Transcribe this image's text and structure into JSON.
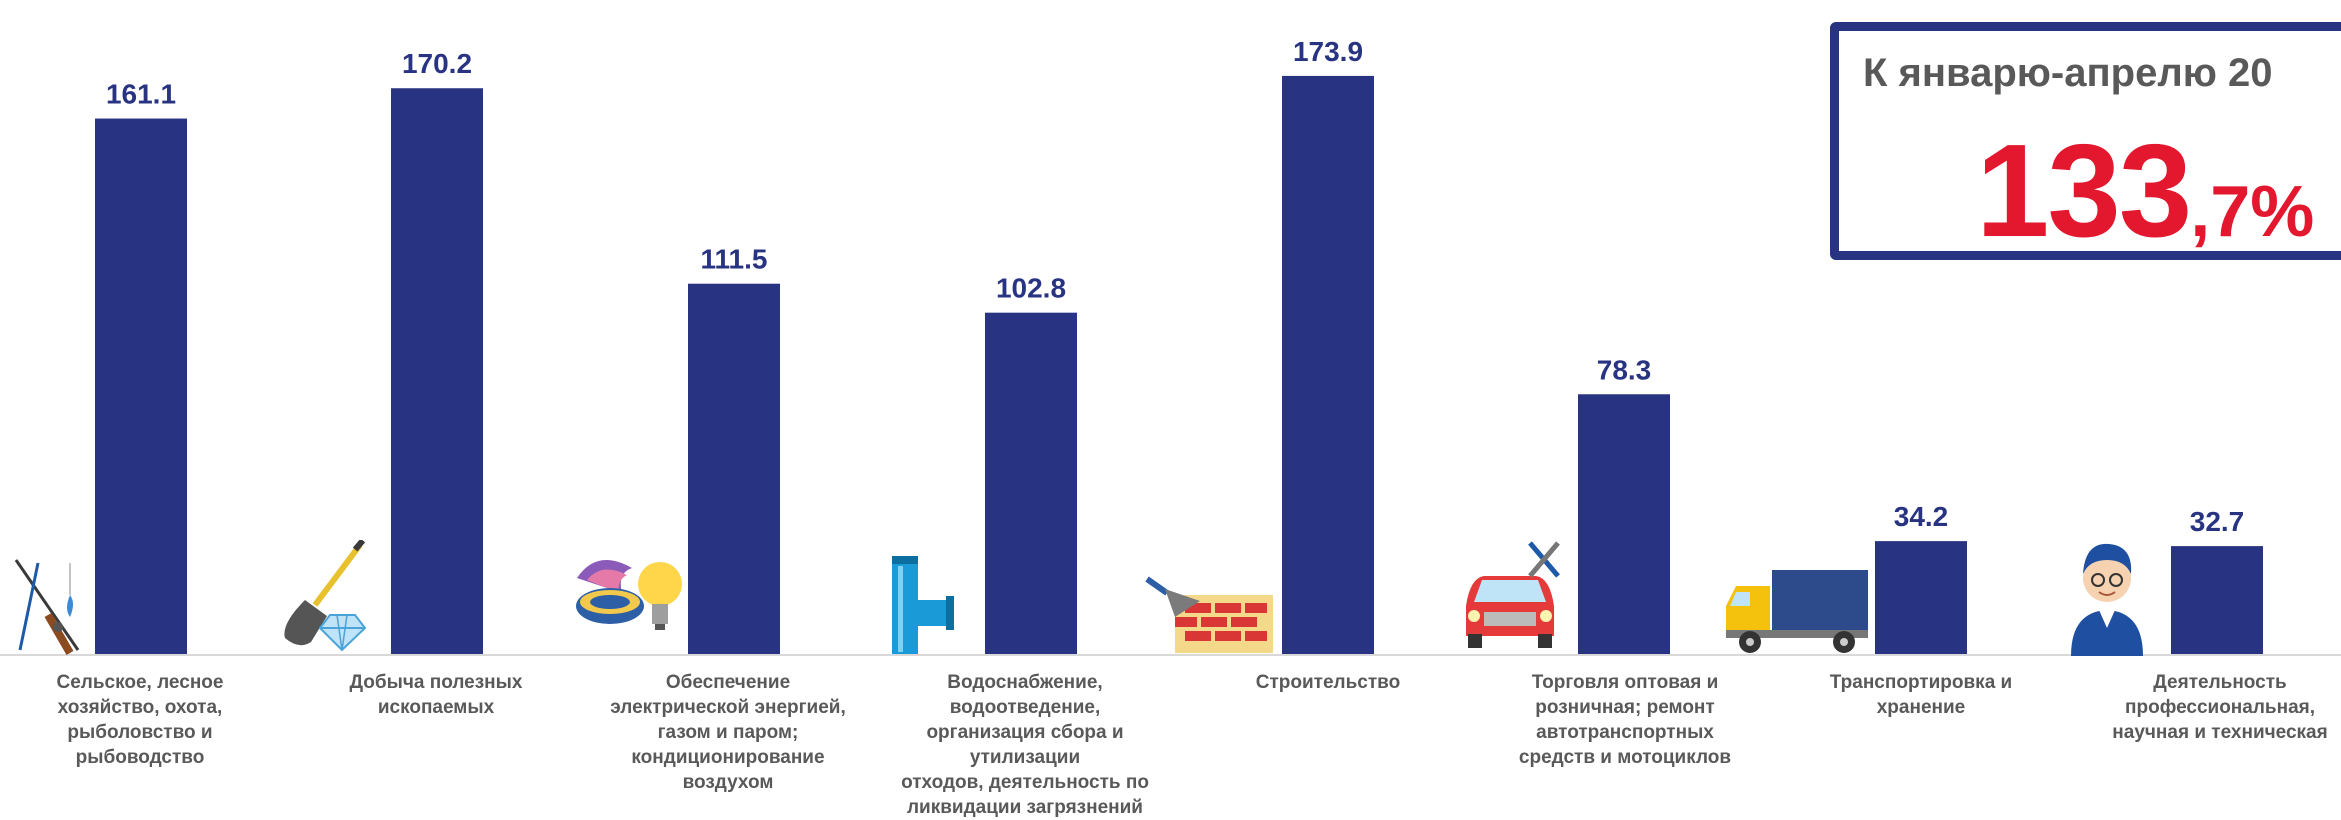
{
  "chart_data": {
    "type": "bar",
    "categories": [
      "Сельское, лесное\nхозяйство, охота,\nрыболовство и\nрыбоводство",
      "Добыча полезных\nископаемых",
      "Обеспечение\nэлектрической энергией,\nгазом и паром;\nкондиционирование\nвоздухом",
      "Водоснабжение,\nводоотведение,\nорганизация сбора и\nутилизации\nотходов, деятельность по\nликвидации загрязнений",
      "Строительство",
      "Торговля оптовая и\nрозничная; ремонт\nавтотранспортных\nсредств и мотоциклов",
      "Транспортировка и\nхранение",
      "Деятельность\nпрофессиональная,\nнаучная и техническая"
    ],
    "values": [
      161.1,
      170.2,
      111.5,
      102.8,
      173.9,
      78.3,
      34.2,
      32.7
    ],
    "value_labels": [
      "161.1",
      "170.2",
      "111.5",
      "102.8",
      "173.9",
      "78.3",
      "34.2",
      "32.7"
    ],
    "title": "",
    "xlabel": "",
    "ylabel": "",
    "ylim": [
      0,
      181
    ],
    "grid": false,
    "bar_color": "#283382",
    "label_color": "#283382",
    "axis_color": "#d9d9d9",
    "category_icons": [
      "fishing-rod-icon",
      "shovel-diamond-icon",
      "gas-burner-bulb-icon",
      "water-pipe-icon",
      "brick-wall-trowel-icon",
      "car-wrench-icon",
      "truck-icon",
      "scientist-icon"
    ]
  },
  "info_box": {
    "title": "К январю-апрелю 20",
    "value_main": "133",
    "value_decimal": ",7%",
    "border_color": "#283382",
    "value_color": "#e3172d"
  }
}
